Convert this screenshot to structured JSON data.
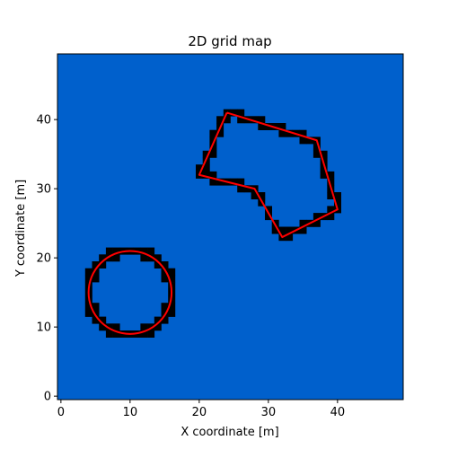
{
  "chart_data": {
    "type": "heatmap",
    "title": "2D grid map",
    "xlabel": "X coordinate [m]",
    "ylabel": "Y coordinate [m]",
    "xlim": [
      -0.5,
      49.5
    ],
    "ylim": [
      -0.5,
      49.5
    ],
    "xticks": [
      0,
      10,
      20,
      30,
      40
    ],
    "yticks": [
      0,
      10,
      20,
      30,
      40
    ],
    "grid_size": [
      50,
      50
    ],
    "free_cell_color": "#0060cc",
    "occupied_cell_color": "#000000",
    "outline_color": "#ff0000",
    "grid": false,
    "obstacles": [
      {
        "shape": "circle",
        "center": [
          10,
          15
        ],
        "radius": 6
      },
      {
        "shape": "polygon",
        "vertices": [
          [
            24,
            41
          ],
          [
            37,
            37
          ],
          [
            40,
            27
          ],
          [
            32,
            23
          ],
          [
            28,
            30
          ],
          [
            20,
            32
          ],
          [
            24,
            41
          ]
        ]
      }
    ]
  }
}
